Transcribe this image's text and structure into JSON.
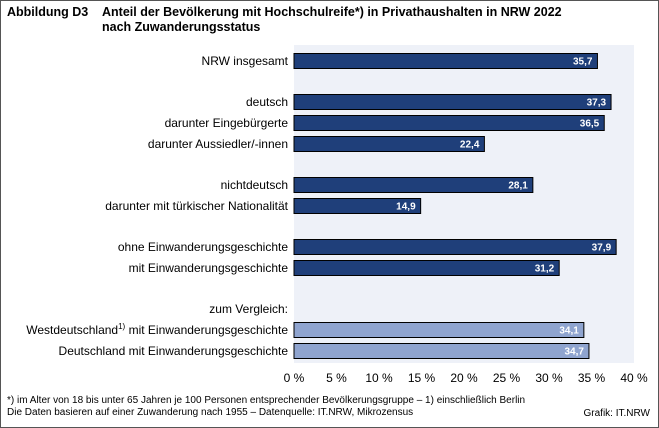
{
  "title": {
    "label": "Abbildung D3",
    "line1": "Anteil der Bevölkerung mit Hochschulreife*) in Privathaushalten in NRW 2022",
    "line2": "nach Zuwanderungsstatus"
  },
  "chart_data": {
    "type": "bar",
    "orientation": "horizontal",
    "xlim": [
      0,
      40
    ],
    "xticks": [
      "0 %",
      "5 %",
      "10 %",
      "15 %",
      "20 %",
      "25 %",
      "30 %",
      "35 %",
      "40 %"
    ],
    "colors": {
      "primary": "#1f3f7a",
      "comparison": "#8fa4cf",
      "plot_bg": "#eef1f8",
      "outline": "#000000"
    },
    "categories": [
      {
        "label": "NRW insgesamt",
        "value": 35.7,
        "value_label": "35,7",
        "style": "primary"
      },
      {
        "label": "deutsch",
        "value": 37.3,
        "value_label": "37,3",
        "style": "primary"
      },
      {
        "label": "darunter Eingebürgerte",
        "value": 36.5,
        "value_label": "36,5",
        "style": "primary"
      },
      {
        "label": "darunter Aussiedler/-innen",
        "value": 22.4,
        "value_label": "22,4",
        "style": "primary"
      },
      {
        "label": "nichtdeutsch",
        "value": 28.1,
        "value_label": "28,1",
        "style": "primary"
      },
      {
        "label": "darunter mit türkischer Nationalität",
        "value": 14.9,
        "value_label": "14,9",
        "style": "primary"
      },
      {
        "label": "ohne Einwanderungsgeschichte",
        "value": 37.9,
        "value_label": "37,9",
        "style": "primary"
      },
      {
        "label": "mit Einwanderungsgeschichte",
        "value": 31.2,
        "value_label": "31,2",
        "style": "primary"
      },
      {
        "label": "zum Vergleich:",
        "value": null,
        "value_label": null,
        "style": "heading"
      },
      {
        "label": "Westdeutschland",
        "sup": "1)",
        "label_suffix": " mit Einwanderungsgeschichte",
        "value": 34.1,
        "value_label": "34,1",
        "style": "comparison"
      },
      {
        "label": "Deutschland mit Einwanderungsgeschichte",
        "value": 34.7,
        "value_label": "34,7",
        "style": "comparison"
      }
    ]
  },
  "footnote": {
    "line1": "*) im Alter von 18 bis unter 65 Jahren je 100 Personen entsprechender Bevölkerungsgruppe – 1) einschließlich Berlin",
    "line2": "Die Daten basieren auf einer Zuwanderung nach 1955 – Datenquelle: IT.NRW, Mikrozensus"
  },
  "source": "Grafik: IT.NRW"
}
